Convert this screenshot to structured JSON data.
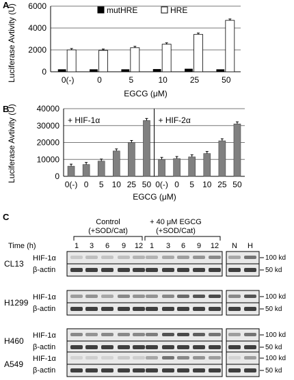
{
  "chart_data": [
    {
      "panel": "A",
      "type": "bar",
      "categories": [
        "0(-)",
        "0",
        "5",
        "10",
        "25",
        "50"
      ],
      "series": [
        {
          "name": "mutHRE",
          "values": [
            200,
            200,
            200,
            220,
            250,
            200
          ],
          "color": "#000000"
        },
        {
          "name": "HRE",
          "values": [
            2000,
            1950,
            2200,
            2520,
            3420,
            4700
          ],
          "color": "#ffffff"
        }
      ],
      "xlabel": "EGCG (μM)",
      "ylabel": "Luciferase Avtivity (U)",
      "ylim": [
        0,
        6000
      ],
      "yticks": [
        "0",
        "2000",
        "4000",
        "6000"
      ],
      "legend": "top"
    },
    {
      "panel": "B",
      "type": "bar",
      "groups": [
        {
          "label": "+ HIF-1α",
          "categories": [
            "0(-)",
            "0",
            "5",
            "10",
            "25",
            "50"
          ],
          "values": [
            6000,
            7000,
            9000,
            15000,
            20000,
            33000
          ]
        },
        {
          "label": "+ HIF-2α",
          "categories": [
            "0(-)",
            "0",
            "5",
            "10",
            "25",
            "50"
          ],
          "values": [
            10000,
            10500,
            11500,
            13500,
            21000,
            31000
          ]
        }
      ],
      "bar_color": "#808080",
      "xlabel": "EGCG (μM)",
      "ylabel": "Luciferase Avtivity (U)",
      "ylim": [
        0,
        40000
      ],
      "yticks": [
        "0",
        "10000",
        "20000",
        "30000",
        "40000"
      ]
    }
  ],
  "panel_c": {
    "label": "C",
    "group_control": [
      "Control",
      "(+SOD/Cat)"
    ],
    "group_egcg": [
      "+ 40 μM EGCG",
      "(+SOD/Cat)"
    ],
    "time_label": "Time (h)",
    "times_control": [
      "1",
      "3",
      "6",
      "9",
      "12"
    ],
    "times_egcg": [
      "1",
      "3",
      "6",
      "9",
      "12"
    ],
    "extra_lanes": [
      "N",
      "H"
    ],
    "cell_lines": [
      {
        "name": "CL13",
        "band1": "HIF-1α",
        "band2": "β-actin",
        "kd1": "100 kd",
        "kd2": "50 kd"
      },
      {
        "name": "H1299",
        "band1": "HIF-1α",
        "band2": "β-actin",
        "kd1": "100 kd",
        "kd2": "50 kd"
      },
      {
        "name": "H460",
        "band1": "HIF-1α",
        "band2": "β-actin",
        "kd1": "100 kd",
        "kd2": "50 kd"
      },
      {
        "name": "A549",
        "band1": "HIF-1α",
        "band2": "β-actin",
        "kd1": "100 kd",
        "kd2": "50 kd"
      }
    ]
  }
}
